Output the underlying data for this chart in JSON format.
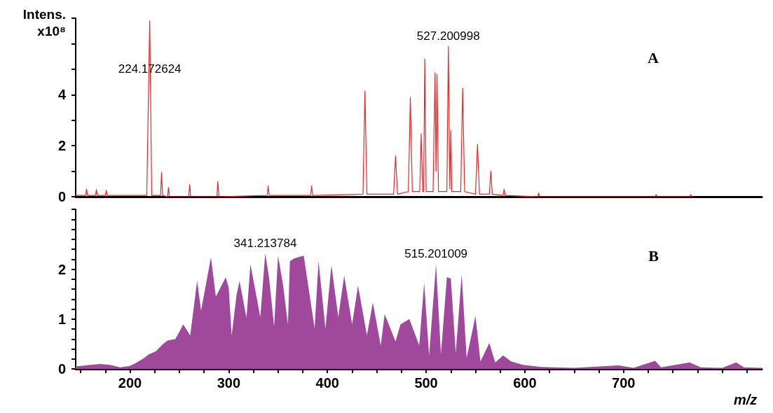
{
  "chart_data": [
    {
      "type": "line",
      "title": "A",
      "ylabel": "Intens.\nx10⁸",
      "tick_labels": "y",
      "marker": "none",
      "xlim": [
        145,
        840
      ],
      "ylim": [
        0,
        7
      ],
      "yticks": [
        0,
        {
          "value": 1,
          "label": null
        },
        2,
        {
          "value": 3,
          "label": null
        },
        4,
        {
          "value": 5,
          "label": null
        },
        {
          "value": 6,
          "label": null
        },
        {
          "value": 7,
          "label": null
        }
      ],
      "annotations": [
        {
          "text": "224.172624",
          "x": 220,
          "y": 4.6
        },
        {
          "text": "527.200998",
          "x": 522.5,
          "y": 5.9
        }
      ],
      "series": [
        {
          "color": "#e8262a",
          "x": [
            145,
            155,
            156,
            157,
            165,
            166,
            167,
            175,
            176,
            177,
            217,
            220,
            222,
            231,
            232,
            233,
            238,
            239,
            240,
            259.5,
            260.5,
            261.5,
            288,
            289,
            290,
            339,
            340,
            341,
            383,
            384,
            385,
            436,
            438,
            440,
            467,
            469,
            471,
            482,
            484,
            486,
            493.5,
            495,
            496.5,
            497.5,
            498.6,
            500,
            507,
            509,
            510,
            511,
            512.5,
            521,
            522.5,
            524,
            525,
            526,
            535,
            537,
            539,
            550,
            552,
            554,
            564,
            565.5,
            567,
            578,
            579,
            580,
            613,
            614,
            615,
            732,
            733,
            734,
            767,
            768,
            769
          ],
          "values": [
            0.05,
            0.05,
            0.3,
            0.05,
            0.05,
            0.28,
            0.05,
            0.05,
            0.25,
            0.05,
            0.05,
            6.9,
            0.05,
            0.05,
            0.96,
            0.05,
            0,
            0.36,
            0,
            0,
            0.47,
            0,
            0,
            0.6,
            0,
            0.05,
            0.42,
            0.05,
            0.05,
            0.42,
            0.05,
            0.1,
            4.15,
            0.1,
            0.1,
            1.6,
            0.1,
            0.2,
            3.9,
            0.2,
            0.2,
            2.47,
            0.2,
            0.2,
            5.4,
            0.2,
            0.2,
            4.86,
            1,
            4.8,
            0.2,
            0.2,
            5.9,
            0.3,
            2.6,
            0.2,
            0.2,
            4.26,
            0.2,
            0.1,
            2.05,
            0.1,
            0.1,
            1,
            0.1,
            0.05,
            0.3,
            0.05,
            0,
            0.15,
            0,
            0,
            0.08,
            0,
            0,
            0.08,
            0
          ]
        }
      ]
    },
    {
      "type": "area",
      "title": "B",
      "xlabel": "m/z",
      "marker": "none",
      "xlim": [
        145,
        840
      ],
      "ylim": [
        0,
        3.2
      ],
      "xticks": [
        {
          "value": 150,
          "label": null
        },
        {
          "value": 175,
          "label": null
        },
        200,
        {
          "value": 225,
          "label": null
        },
        {
          "value": 250,
          "label": null
        },
        {
          "value": 275,
          "label": null
        },
        300,
        {
          "value": 325,
          "label": null
        },
        {
          "value": 350,
          "label": null
        },
        {
          "value": 375,
          "label": null
        },
        400,
        {
          "value": 425,
          "label": null
        },
        {
          "value": 450,
          "label": null
        },
        {
          "value": 475,
          "label": null
        },
        500,
        {
          "value": 525,
          "label": null
        },
        {
          "value": 550,
          "label": null
        },
        {
          "value": 575,
          "label": null
        },
        600,
        {
          "value": 625,
          "label": null
        },
        {
          "value": 650,
          "label": null
        },
        {
          "value": 675,
          "label": null
        },
        700,
        {
          "value": 725,
          "label": null
        },
        {
          "value": 750,
          "label": null
        },
        {
          "value": 775,
          "label": null
        },
        {
          "value": 800,
          "label": null
        },
        {
          "value": 825,
          "label": null
        }
      ],
      "yticks": [
        0,
        {
          "value": 0.2,
          "label": null
        },
        {
          "value": 0.4,
          "label": null
        },
        {
          "value": 0.6,
          "label": null
        },
        {
          "value": 0.8,
          "label": null
        },
        1,
        {
          "value": 1.2,
          "label": null
        },
        {
          "value": 1.4,
          "label": null
        },
        {
          "value": 1.6,
          "label": null
        },
        {
          "value": 1.8,
          "label": null
        },
        2,
        {
          "value": 2.2,
          "label": null
        },
        {
          "value": 2.4,
          "label": null
        },
        {
          "value": 2.6,
          "label": null
        },
        {
          "value": 2.8,
          "label": null
        },
        {
          "value": 3,
          "label": null
        },
        {
          "value": 3.2,
          "label": null
        }
      ],
      "annotations": [
        {
          "text": "341.213784",
          "x": 337,
          "y": 2.32
        },
        {
          "text": "515.201009",
          "x": 510,
          "y": 2.1
        }
      ],
      "series": [
        {
          "color": "#a0489c",
          "x": [
            145,
            160,
            170,
            180,
            190,
            200,
            206,
            213,
            219,
            226,
            233,
            238,
            246,
            254,
            261,
            268,
            272,
            282,
            287,
            297,
            300,
            303,
            308,
            311,
            318,
            322,
            327,
            332,
            337,
            341,
            346,
            350,
            355,
            360,
            362,
            367,
            376,
            381,
            387,
            391,
            398,
            404,
            411,
            417,
            425,
            431,
            440,
            446,
            454,
            458,
            469,
            474,
            483,
            493,
            498,
            503,
            510,
            515,
            521,
            525,
            530,
            536,
            541,
            550,
            555,
            564,
            570,
            578,
            586,
            598,
            616,
            650,
            695,
            710,
            732,
            738,
            767,
            778,
            800,
            814,
            822,
            840
          ],
          "values": [
            0.05,
            0.08,
            0.1,
            0.08,
            0.03,
            0.06,
            0.12,
            0.2,
            0.29,
            0.35,
            0.49,
            0.57,
            0.6,
            0.89,
            0.67,
            1.77,
            1.17,
            2.24,
            1.45,
            1.84,
            1.63,
            0.67,
            1.49,
            1.76,
            1.02,
            2.1,
            1.57,
            1.04,
            2.32,
            1.81,
            0.85,
            2.27,
            1.69,
            0.89,
            2.16,
            2.22,
            2.27,
            1.61,
            0.81,
            2.16,
            0.81,
            2.08,
            1.04,
            1.87,
            0.89,
            1.67,
            0.67,
            1.33,
            0.47,
            1.1,
            0.55,
            0.89,
            1.0,
            0.47,
            1.73,
            0.27,
            2.1,
            0.3,
            1.84,
            1.81,
            0.32,
            1.9,
            0.22,
            1.06,
            0.15,
            0.52,
            0.13,
            0.27,
            0.15,
            0.08,
            0.04,
            0.02,
            0.07,
            0.02,
            0.16,
            0.03,
            0.13,
            0.03,
            0.02,
            0.13,
            0.03,
            0.02
          ]
        }
      ]
    }
  ]
}
